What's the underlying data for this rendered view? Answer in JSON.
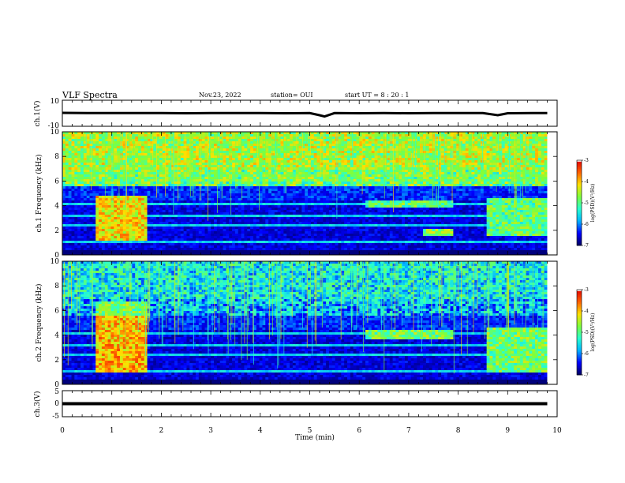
{
  "header": {
    "title": "VLF Spectra",
    "date": "Nov.23, 2022",
    "station": "station= OUI",
    "start": "start  UT =   8 : 20 : 1"
  },
  "colorbar": {
    "label": "log(PSD)(V²/Hz)",
    "ticks": [
      "-3",
      "-4",
      "-5",
      "-6",
      "-7"
    ],
    "colors": [
      "#000060",
      "#0000ff",
      "#00b4ff",
      "#28ffd0",
      "#7dff3c",
      "#ffe000",
      "#ff6000",
      "#e00000",
      "#ffffff"
    ]
  },
  "chart_data": [
    {
      "type": "line",
      "name": "waveform-ch1",
      "ylabel": "ch.1(V)",
      "ylim": [
        -10,
        10
      ],
      "y_ticks": [
        "10",
        "-10"
      ],
      "xlim": [
        0,
        10
      ],
      "x": [
        0,
        0.5,
        1.0,
        1.5,
        2.0,
        2.5,
        3.0,
        3.5,
        4.0,
        4.5,
        5.0,
        5.2,
        5.3,
        5.5,
        6.0,
        6.5,
        7.0,
        7.5,
        8.0,
        8.5,
        8.8,
        9.0,
        9.5,
        9.8
      ],
      "y": [
        0.3,
        0.2,
        0.1,
        0.2,
        0.1,
        0.0,
        0.1,
        0.2,
        0.1,
        0.0,
        0.1,
        -1.5,
        -2.5,
        0.1,
        0.0,
        0.1,
        0.0,
        0.1,
        0.2,
        0.1,
        -1.5,
        0.0,
        0.1,
        0.2
      ]
    },
    {
      "type": "heatmap",
      "name": "spectrogram-ch1",
      "ylabel": "ch.1  Frequency (kHz)",
      "ylim": [
        0,
        10
      ],
      "y_ticks": [
        "10",
        "8",
        "6",
        "4",
        "2",
        "0"
      ],
      "xlim": [
        0,
        10
      ],
      "z_range": [
        -7,
        -3
      ],
      "regions": [
        {
          "t": [
            0.65,
            1.7
          ],
          "f": [
            1.2,
            4.8
          ],
          "level": -4.2
        },
        {
          "t": [
            6.1,
            7.9
          ],
          "f": [
            3.8,
            4.4
          ],
          "level": -5.0
        },
        {
          "t": [
            7.3,
            7.9
          ],
          "f": [
            1.5,
            2.2
          ],
          "level": -4.8
        },
        {
          "t": [
            8.6,
            9.8
          ],
          "f": [
            1.5,
            4.6
          ],
          "level": -5.0
        },
        {
          "t": [
            0.0,
            9.8
          ],
          "f": [
            6.0,
            10.0
          ],
          "level": -5.2
        }
      ]
    },
    {
      "type": "heatmap",
      "name": "spectrogram-ch2",
      "ylabel": "ch.2  Frequency (kHz)",
      "ylim": [
        0,
        10
      ],
      "y_ticks": [
        "10",
        "8",
        "6",
        "4",
        "2",
        "0"
      ],
      "xlim": [
        0,
        10
      ],
      "z_range": [
        -7,
        -3
      ],
      "regions": [
        {
          "t": [
            0.65,
            1.7
          ],
          "f": [
            1.0,
            6.8
          ],
          "level": -4.0
        },
        {
          "t": [
            6.1,
            7.9
          ],
          "f": [
            3.6,
            4.5
          ],
          "level": -4.9
        },
        {
          "t": [
            8.6,
            9.8
          ],
          "f": [
            1.0,
            4.6
          ],
          "level": -4.9
        }
      ]
    },
    {
      "type": "line",
      "name": "waveform-ch3",
      "ylabel": "ch.3(V)",
      "ylim": [
        -5,
        5
      ],
      "y_ticks": [
        "5",
        "0",
        "-5"
      ],
      "xlim": [
        0,
        10
      ],
      "x": [
        0,
        9.8
      ],
      "y": [
        0,
        0
      ]
    }
  ],
  "x_axis": {
    "label": "Time  (min)",
    "ticks": [
      "0",
      "1",
      "2",
      "3",
      "4",
      "5",
      "6",
      "7",
      "8",
      "9",
      "10"
    ]
  }
}
